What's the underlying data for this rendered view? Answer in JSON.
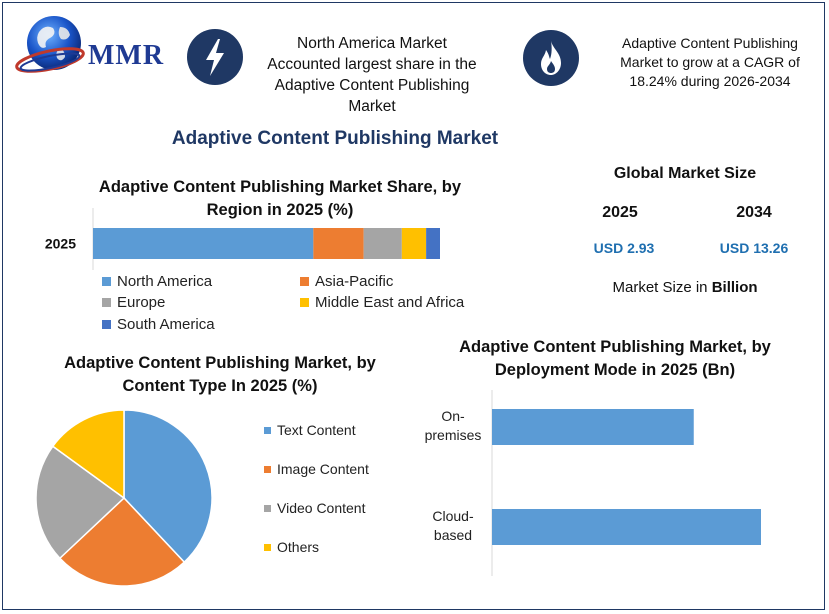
{
  "brand": {
    "name": "MMR"
  },
  "callouts": [
    {
      "icon": "lightning-icon",
      "text": "North America Market Accounted largest share in the Adaptive Content Publishing Market"
    },
    {
      "icon": "flame-icon",
      "text": "Adaptive Content Publishing Market to grow at a CAGR of 18.24% during 2026-2034"
    }
  ],
  "main_title": "Adaptive Content Publishing Market",
  "global_size": {
    "title": "Global Market Size",
    "years": [
      "2025",
      "2034"
    ],
    "values": [
      "USD 2.93",
      "USD 13.26"
    ],
    "note_prefix": "Market Size in ",
    "note_bold": "Billion"
  },
  "colors": {
    "accent": "#1f3864",
    "value_text": "#1f6fb0"
  },
  "chart_data": [
    {
      "type": "bar",
      "orientation": "horizontal-stacked",
      "title": "Adaptive Content Publishing Market Share, by Region in 2025 (%)",
      "categories": [
        "2025"
      ],
      "series": [
        {
          "name": "North America",
          "values": [
            63.5
          ],
          "color": "#5b9bd5"
        },
        {
          "name": "Asia-Pacific",
          "values": [
            14.5
          ],
          "color": "#ed7d31"
        },
        {
          "name": "Europe",
          "values": [
            11.0
          ],
          "color": "#a5a5a5"
        },
        {
          "name": "Middle East and Africa",
          "values": [
            7.0
          ],
          "color": "#ffc000"
        },
        {
          "name": "South America",
          "values": [
            4.0
          ],
          "color": "#4472c4"
        }
      ],
      "xlim": [
        0,
        100
      ],
      "legend": "bottom"
    },
    {
      "type": "pie",
      "title": "Adaptive Content Publishing Market, by Content Type In 2025 (%)",
      "categories": [
        "Text Content",
        "Image Content",
        "Video Content",
        "Others"
      ],
      "values": [
        38,
        25,
        22,
        15
      ],
      "colors": [
        "#5b9bd5",
        "#ed7d31",
        "#a5a5a5",
        "#ffc000"
      ],
      "legend": "right"
    },
    {
      "type": "bar",
      "orientation": "horizontal",
      "title": "Adaptive Content Publishing Market, by Deployment Mode in 2025 (Bn)",
      "categories": [
        "On-premises",
        "Cloud-based"
      ],
      "category_lines": [
        [
          "On-",
          "premises"
        ],
        [
          "Cloud-",
          "based"
        ]
      ],
      "values": [
        1.2,
        1.6
      ],
      "xlim": [
        0,
        1.72
      ],
      "color": "#5b9bd5"
    }
  ]
}
